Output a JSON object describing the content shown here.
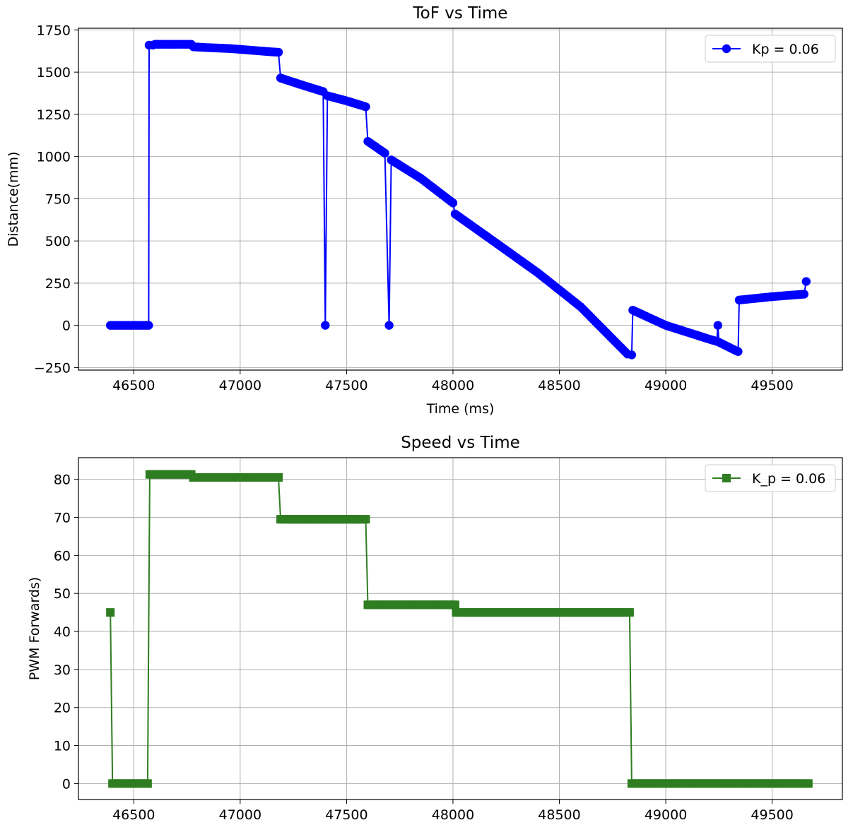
{
  "chart_data": [
    {
      "type": "line",
      "title": "ToF vs Time",
      "xlabel": "Time (ms)",
      "ylabel": "Distance(mm)",
      "xlim": [
        46240,
        49830
      ],
      "ylim": [
        -265,
        1760
      ],
      "xticks": [
        46500,
        47000,
        47500,
        48000,
        48500,
        49000,
        49500
      ],
      "yticks": [
        -250,
        0,
        250,
        500,
        750,
        1000,
        1250,
        1500,
        1750
      ],
      "xtick_labels": [
        "46500",
        "47000",
        "47500",
        "48000",
        "48500",
        "49000",
        "49500"
      ],
      "ytick_labels": [
        "−250",
        "0",
        "250",
        "500",
        "750",
        "1000",
        "1250",
        "1500",
        "1750"
      ],
      "grid": true,
      "legend_position": "top-right",
      "series": [
        {
          "name": "Kp = 0.06",
          "color": "#0000ff",
          "marker": "circle",
          "points": [
            [
              46390,
              0
            ],
            [
              46570,
              0
            ],
            [
              46572,
              1660
            ],
            [
              46590,
              1660
            ],
            [
              46600,
              1665
            ],
            [
              46770,
              1665
            ],
            [
              46780,
              1650
            ],
            [
              46850,
              1645
            ],
            [
              46950,
              1640
            ],
            [
              47050,
              1630
            ],
            [
              47150,
              1620
            ],
            [
              47180,
              1618
            ],
            [
              47190,
              1465
            ],
            [
              47300,
              1420
            ],
            [
              47390,
              1385
            ],
            [
              47400,
              0
            ],
            [
              47410,
              1360
            ],
            [
              47500,
              1330
            ],
            [
              47590,
              1295
            ],
            [
              47600,
              1090
            ],
            [
              47680,
              1020
            ],
            [
              47700,
              0
            ],
            [
              47710,
              980
            ],
            [
              47850,
              870
            ],
            [
              48000,
              725
            ],
            [
              48010,
              660
            ],
            [
              48200,
              490
            ],
            [
              48400,
              310
            ],
            [
              48600,
              110
            ],
            [
              48820,
              -170
            ],
            [
              48840,
              -175
            ],
            [
              48845,
              90
            ],
            [
              49000,
              0
            ],
            [
              49200,
              -80
            ],
            [
              49240,
              -95
            ],
            [
              49245,
              0
            ],
            [
              49250,
              -100
            ],
            [
              49330,
              -150
            ],
            [
              49340,
              -155
            ],
            [
              49345,
              150
            ],
            [
              49500,
              170
            ],
            [
              49650,
              185
            ],
            [
              49660,
              260
            ]
          ]
        }
      ]
    },
    {
      "type": "line",
      "title": "Speed vs Time",
      "xlabel": "",
      "ylabel": "PWM Forwards)",
      "xlim": [
        46240,
        49830
      ],
      "ylim": [
        -4.2,
        85.7
      ],
      "xticks": [
        46500,
        47000,
        47500,
        48000,
        48500,
        49000,
        49500
      ],
      "yticks": [
        0,
        10,
        20,
        30,
        40,
        50,
        60,
        70,
        80
      ],
      "xtick_labels": [
        "46500",
        "47000",
        "47500",
        "48000",
        "48500",
        "49000",
        "49500"
      ],
      "ytick_labels": [
        "0",
        "10",
        "20",
        "30",
        "40",
        "50",
        "60",
        "70",
        "80"
      ],
      "grid": true,
      "legend_position": "top-right",
      "series": [
        {
          "name": "K_p = 0.06",
          "color": "#2e7d20",
          "marker": "square",
          "points": [
            [
              46390,
              45
            ],
            [
              46400,
              0
            ],
            [
              46565,
              0
            ],
            [
              46575,
              81.3
            ],
            [
              46770,
              81.3
            ],
            [
              46780,
              80.5
            ],
            [
              47180,
              80.5
            ],
            [
              47190,
              69.5
            ],
            [
              47590,
              69.5
            ],
            [
              47600,
              47
            ],
            [
              48010,
              47
            ],
            [
              48015,
              45
            ],
            [
              48830,
              45
            ],
            [
              48840,
              0
            ],
            [
              49670,
              0
            ]
          ]
        }
      ]
    }
  ]
}
